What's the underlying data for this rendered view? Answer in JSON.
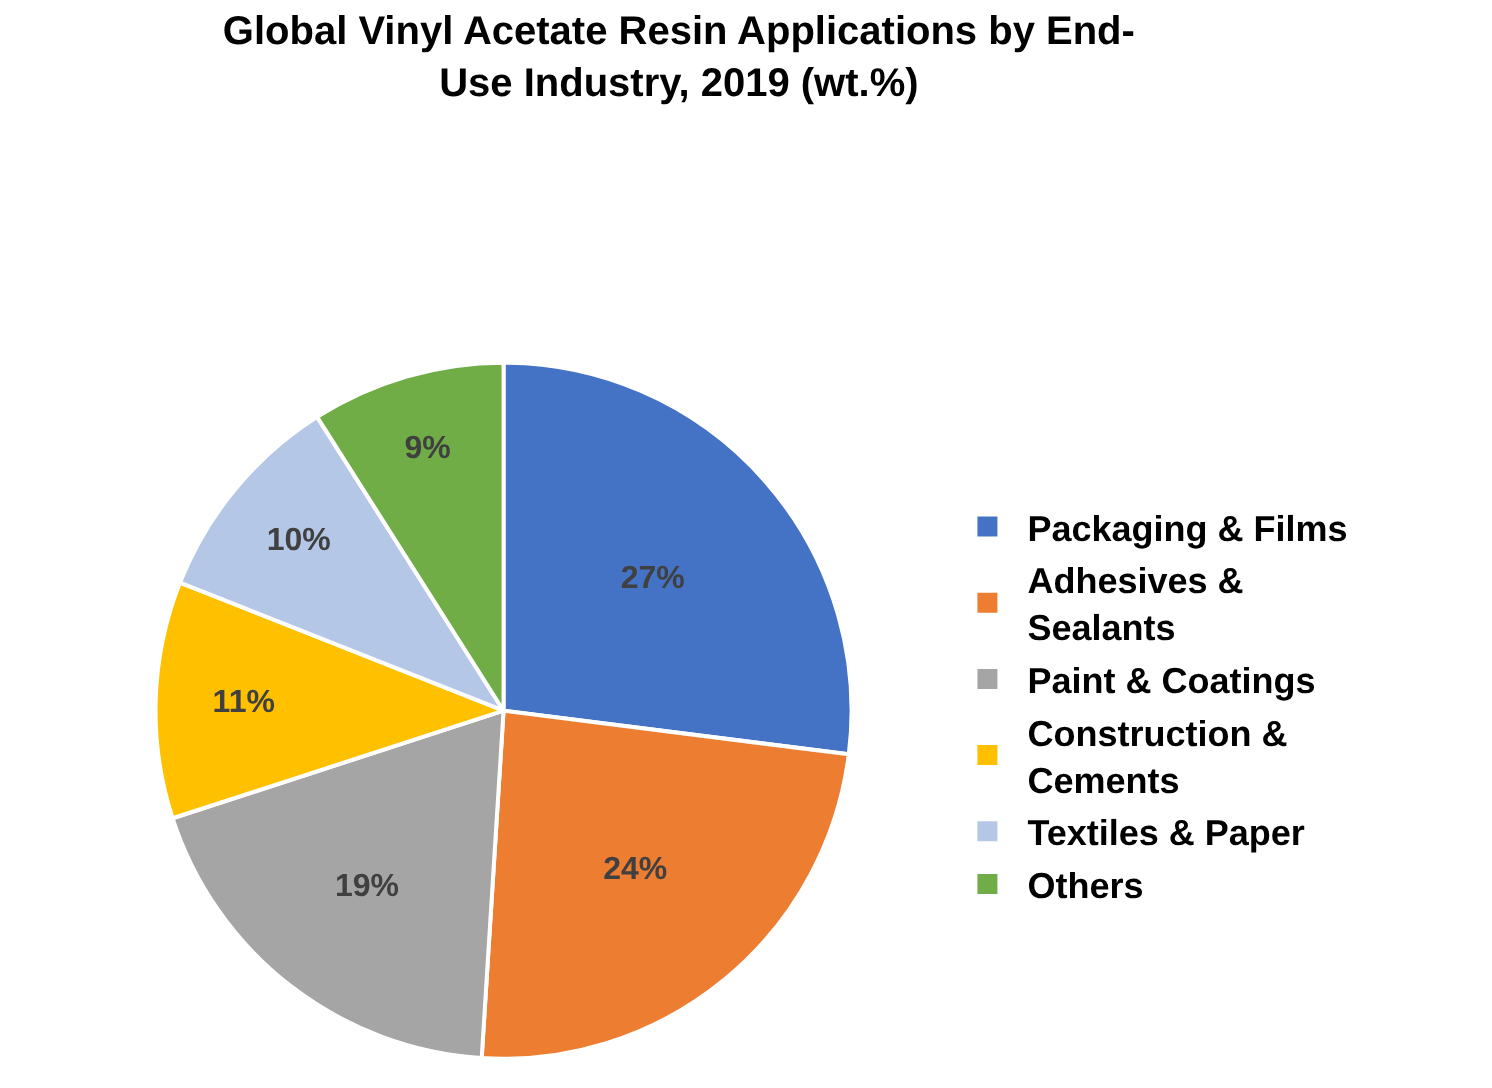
{
  "chart_data": {
    "type": "pie",
    "title": "Global Vinyl Acetate Resin Applications by End-Use Industry, 2019 (wt.%)",
    "categories": [
      "Packaging & Films",
      "Adhesives & Sealants",
      "Paint & Coatings",
      "Construction & Cements",
      "Textiles & Paper",
      "Others"
    ],
    "values": [
      27,
      24,
      19,
      11,
      10,
      9
    ],
    "value_labels": [
      "27%",
      "24%",
      "19%",
      "11%",
      "10%",
      "9%"
    ],
    "colors": [
      "#4472c4",
      "#ed7d31",
      "#a5a5a5",
      "#ffc000",
      "#b4c7e7",
      "#70ad47"
    ],
    "legend": "right"
  }
}
